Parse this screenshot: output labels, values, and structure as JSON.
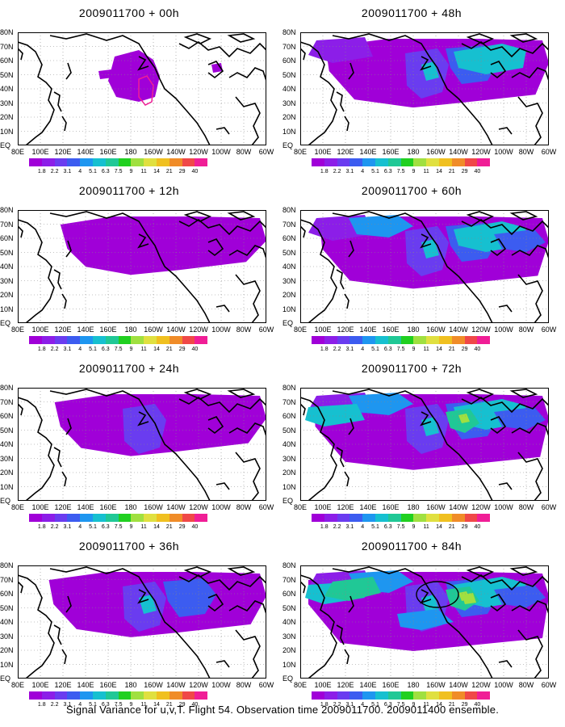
{
  "panels": [
    {
      "title": "2009011700 + 00h",
      "level": 0
    },
    {
      "title": "2009011700 + 48h",
      "level": 4
    },
    {
      "title": "2009011700 + 12h",
      "level": 1
    },
    {
      "title": "2009011700 + 60h",
      "level": 5
    },
    {
      "title": "2009011700 + 24h",
      "level": 2
    },
    {
      "title": "2009011700 + 72h",
      "level": 6
    },
    {
      "title": "2009011700 + 36h",
      "level": 3
    },
    {
      "title": "2009011700 + 84h",
      "level": 7
    }
  ],
  "lat_labels": [
    "80N",
    "70N",
    "60N",
    "50N",
    "40N",
    "30N",
    "20N",
    "10N",
    "EQ"
  ],
  "lon_labels": [
    "80E",
    "100E",
    "120E",
    "140E",
    "160E",
    "180",
    "160W",
    "140W",
    "120W",
    "100W",
    "80W",
    "60W"
  ],
  "colorbar": {
    "labels": [
      "1.8",
      "2.2",
      "3.1",
      "4",
      "5.1",
      "6.3",
      "7.5",
      "9",
      "11",
      "14",
      "21",
      "29",
      "40"
    ],
    "colors": [
      "#a000d8",
      "#8c1ee8",
      "#6a3cf0",
      "#3c5cf0",
      "#1e96f0",
      "#16c0d0",
      "#20c896",
      "#20d020",
      "#a0e040",
      "#e0e040",
      "#f0c020",
      "#f08c28",
      "#f04848",
      "#f01e96"
    ]
  },
  "caption": "Signal Variance for u,v,T. Flight 54. Observation time 2009011700. 2009011400 ensemble."
}
